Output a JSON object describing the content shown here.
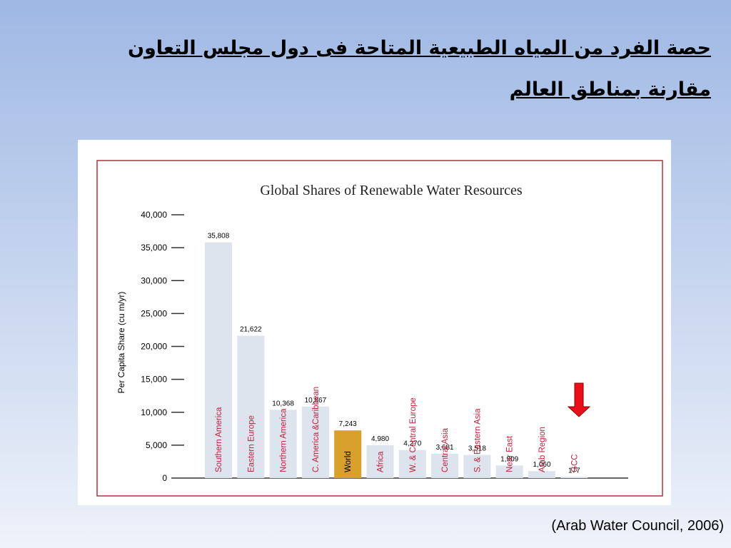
{
  "slide_title": [
    "حصة الفرد من المياه الطبيعية المتاحة فى دول مجلس التعاون",
    "مقارنة بمناطق العالم"
  ],
  "source": "(Arab Water Council, 2006)",
  "chart_data": {
    "type": "bar",
    "title": "Global Shares of Renewable Water Resources",
    "y_label": "Per Capita Share (cu m/yr)",
    "categories": [
      "Southern America",
      "Eastern Europe",
      "Northern America",
      "C. America &Caribbean",
      "World",
      "Africa",
      "W. & Central Europe",
      "Central Asia",
      "S. & Eastern Asia",
      "Near East",
      "Arab Region",
      "GCC"
    ],
    "values": [
      35808,
      21622,
      10368,
      10867,
      7243,
      4980,
      4270,
      3681,
      3518,
      1909,
      1060,
      177
    ],
    "value_labels": [
      "35,808",
      "21,622",
      "10,368",
      "10,867",
      "7,243",
      "4,980",
      "4,270",
      "3,681",
      "3,518",
      "1,909",
      "1,060",
      "177"
    ],
    "colors": [
      "#dde4ee",
      "#dde4ee",
      "#dde4ee",
      "#dde4ee",
      "#d9a02e",
      "#dde4ee",
      "#dde4ee",
      "#dde4ee",
      "#dde4ee",
      "#dde4ee",
      "#dde4ee",
      "#dde4ee"
    ],
    "ylim": [
      0,
      40000
    ],
    "yticks": [
      0,
      {
        "value": 5000,
        "label": "5,000"
      },
      {
        "value": 10000,
        "label": "10,000"
      },
      {
        "value": 15000,
        "label": "15,000"
      },
      {
        "value": 20000,
        "label": "20,000"
      },
      {
        "value": 25000,
        "label": "25,000"
      },
      {
        "value": 30000,
        "label": "30,000"
      },
      {
        "value": 35000,
        "label": "35,000"
      },
      {
        "value": 40000,
        "label": "40,000"
      }
    ]
  }
}
